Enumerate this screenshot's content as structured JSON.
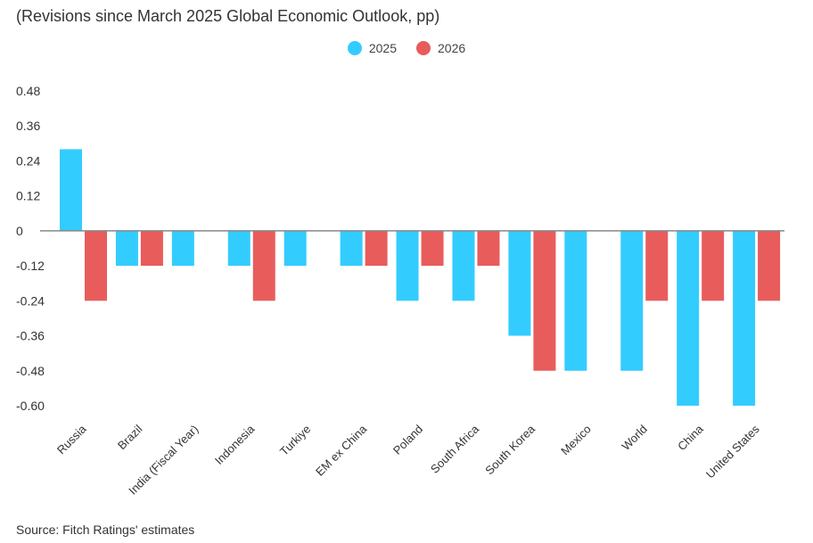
{
  "subtitle": "(Revisions since March 2025 Global Economic Outlook, pp)",
  "source": "Source: Fitch Ratings' estimates",
  "colors": {
    "2025": "#33ccff",
    "2026": "#e85c5c",
    "axis": "#888888"
  },
  "chart_data": {
    "type": "bar",
    "title": "",
    "xlabel": "",
    "ylabel": "",
    "ylim": [
      -0.6,
      0.48
    ],
    "yticks": [
      "0.48",
      "0.36",
      "0.24",
      "0.12",
      "0",
      "-0.12",
      "-0.24",
      "-0.36",
      "-0.48",
      "-0.60"
    ],
    "ytick_values": [
      0.48,
      0.36,
      0.24,
      0.12,
      0,
      -0.12,
      -0.24,
      -0.36,
      -0.48,
      -0.6
    ],
    "legend_position": "top-center",
    "grid": false,
    "categories": [
      "Russia",
      "Brazil",
      "India (Fiscal Year)",
      "Indonesia",
      "Turkiye",
      "EM ex China",
      "Poland",
      "South Africa",
      "South Korea",
      "Mexico",
      "World",
      "China",
      "United States"
    ],
    "series": [
      {
        "name": "2025",
        "values": [
          0.28,
          -0.12,
          -0.12,
          -0.12,
          -0.12,
          -0.12,
          -0.24,
          -0.24,
          -0.36,
          -0.48,
          -0.48,
          -0.6,
          -0.6
        ]
      },
      {
        "name": "2026",
        "values": [
          -0.24,
          -0.12,
          0,
          -0.24,
          0,
          -0.12,
          -0.12,
          -0.12,
          -0.48,
          0,
          -0.24,
          -0.24,
          -0.24
        ]
      }
    ]
  }
}
